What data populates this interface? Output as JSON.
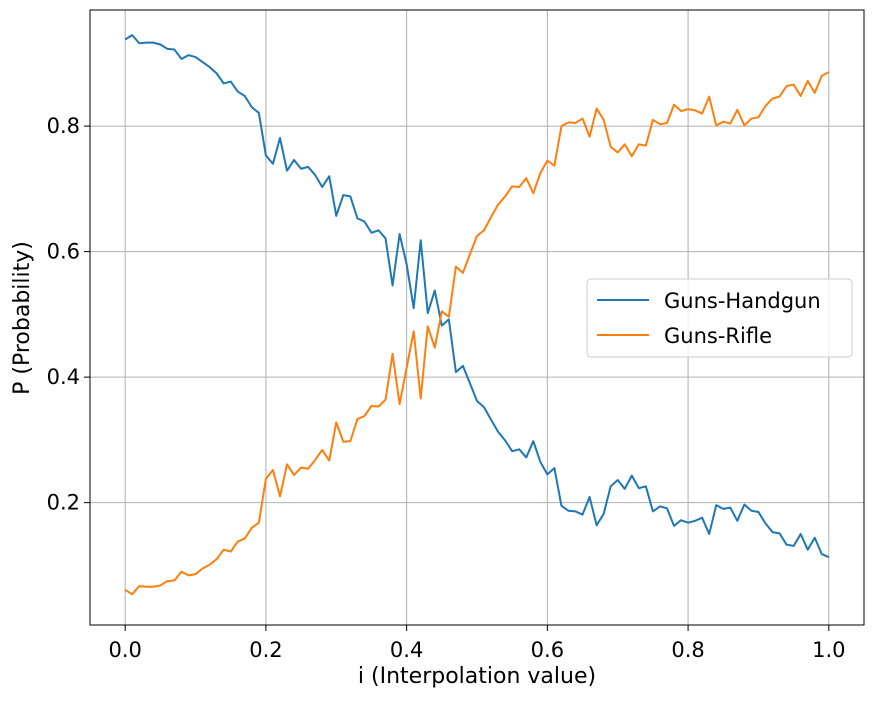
{
  "chart_data": {
    "type": "line",
    "title": "",
    "xlabel": "i (Interpolation value)",
    "ylabel": "P (Probability)",
    "xlim": [
      -0.05,
      1.05
    ],
    "ylim": [
      0.005,
      0.985
    ],
    "xticks": [
      0.0,
      0.2,
      0.4,
      0.6,
      0.8,
      1.0
    ],
    "xtick_labels": [
      "0.0",
      "0.2",
      "0.4",
      "0.6",
      "0.8",
      "1.0"
    ],
    "yticks": [
      0.2,
      0.4,
      0.6,
      0.8
    ],
    "ytick_labels": [
      "0.2",
      "0.4",
      "0.6",
      "0.8"
    ],
    "grid": true,
    "legend": {
      "placement": "center-right"
    },
    "x": [
      0.0,
      0.01,
      0.02,
      0.03,
      0.04,
      0.05,
      0.06,
      0.07,
      0.08,
      0.09,
      0.1,
      0.11,
      0.12,
      0.13,
      0.14,
      0.15,
      0.16,
      0.17,
      0.18,
      0.19,
      0.2,
      0.21,
      0.22,
      0.23,
      0.24,
      0.25,
      0.26,
      0.27,
      0.28,
      0.29,
      0.3,
      0.31,
      0.32,
      0.33,
      0.34,
      0.35,
      0.36,
      0.37,
      0.38,
      0.39,
      0.4,
      0.41,
      0.42,
      0.43,
      0.44,
      0.45,
      0.46,
      0.47,
      0.48,
      0.49,
      0.5,
      0.51,
      0.52,
      0.53,
      0.54,
      0.55,
      0.56,
      0.57,
      0.58,
      0.59,
      0.6,
      0.61,
      0.62,
      0.63,
      0.64,
      0.65,
      0.66,
      0.67,
      0.68,
      0.69,
      0.7,
      0.71,
      0.72,
      0.73,
      0.74,
      0.75,
      0.76,
      0.77,
      0.78,
      0.79,
      0.8,
      0.81,
      0.82,
      0.83,
      0.84,
      0.85,
      0.86,
      0.87,
      0.88,
      0.89,
      0.9,
      0.91,
      0.92,
      0.93,
      0.94,
      0.95,
      0.96,
      0.97,
      0.98,
      0.99,
      1.0
    ],
    "series": [
      {
        "name": "Guns-Handgun",
        "color": "#1f77b4",
        "values": [
          0.938,
          0.945,
          0.932,
          0.933,
          0.933,
          0.93,
          0.923,
          0.922,
          0.907,
          0.913,
          0.91,
          0.902,
          0.894,
          0.884,
          0.868,
          0.871,
          0.855,
          0.848,
          0.83,
          0.821,
          0.753,
          0.74,
          0.781,
          0.729,
          0.746,
          0.732,
          0.735,
          0.722,
          0.703,
          0.72,
          0.657,
          0.69,
          0.688,
          0.653,
          0.648,
          0.63,
          0.634,
          0.621,
          0.546,
          0.628,
          0.58,
          0.51,
          0.618,
          0.502,
          0.538,
          0.482,
          0.492,
          0.408,
          0.418,
          0.39,
          0.362,
          0.352,
          0.332,
          0.313,
          0.299,
          0.282,
          0.285,
          0.272,
          0.298,
          0.265,
          0.245,
          0.255,
          0.195,
          0.187,
          0.186,
          0.181,
          0.209,
          0.164,
          0.182,
          0.226,
          0.236,
          0.222,
          0.243,
          0.223,
          0.226,
          0.186,
          0.194,
          0.191,
          0.163,
          0.172,
          0.168,
          0.171,
          0.176,
          0.15,
          0.196,
          0.19,
          0.192,
          0.171,
          0.197,
          0.187,
          0.185,
          0.167,
          0.153,
          0.151,
          0.133,
          0.131,
          0.15,
          0.125,
          0.144,
          0.118,
          0.113
        ]
      },
      {
        "name": "Guns-Rifle",
        "color": "#ff7f0e",
        "values": [
          0.061,
          0.054,
          0.067,
          0.066,
          0.066,
          0.068,
          0.075,
          0.076,
          0.09,
          0.084,
          0.086,
          0.095,
          0.101,
          0.11,
          0.125,
          0.122,
          0.138,
          0.143,
          0.16,
          0.168,
          0.238,
          0.252,
          0.21,
          0.261,
          0.244,
          0.256,
          0.254,
          0.268,
          0.284,
          0.267,
          0.328,
          0.297,
          0.298,
          0.333,
          0.338,
          0.354,
          0.353,
          0.364,
          0.437,
          0.357,
          0.415,
          0.473,
          0.366,
          0.481,
          0.447,
          0.505,
          0.496,
          0.576,
          0.566,
          0.596,
          0.625,
          0.634,
          0.655,
          0.675,
          0.688,
          0.704,
          0.703,
          0.717,
          0.693,
          0.725,
          0.745,
          0.737,
          0.8,
          0.806,
          0.805,
          0.812,
          0.783,
          0.828,
          0.81,
          0.767,
          0.758,
          0.771,
          0.752,
          0.771,
          0.769,
          0.81,
          0.803,
          0.805,
          0.834,
          0.824,
          0.827,
          0.825,
          0.82,
          0.847,
          0.801,
          0.807,
          0.804,
          0.826,
          0.801,
          0.812,
          0.814,
          0.832,
          0.844,
          0.847,
          0.864,
          0.866,
          0.848,
          0.872,
          0.853,
          0.88,
          0.886
        ]
      }
    ]
  }
}
